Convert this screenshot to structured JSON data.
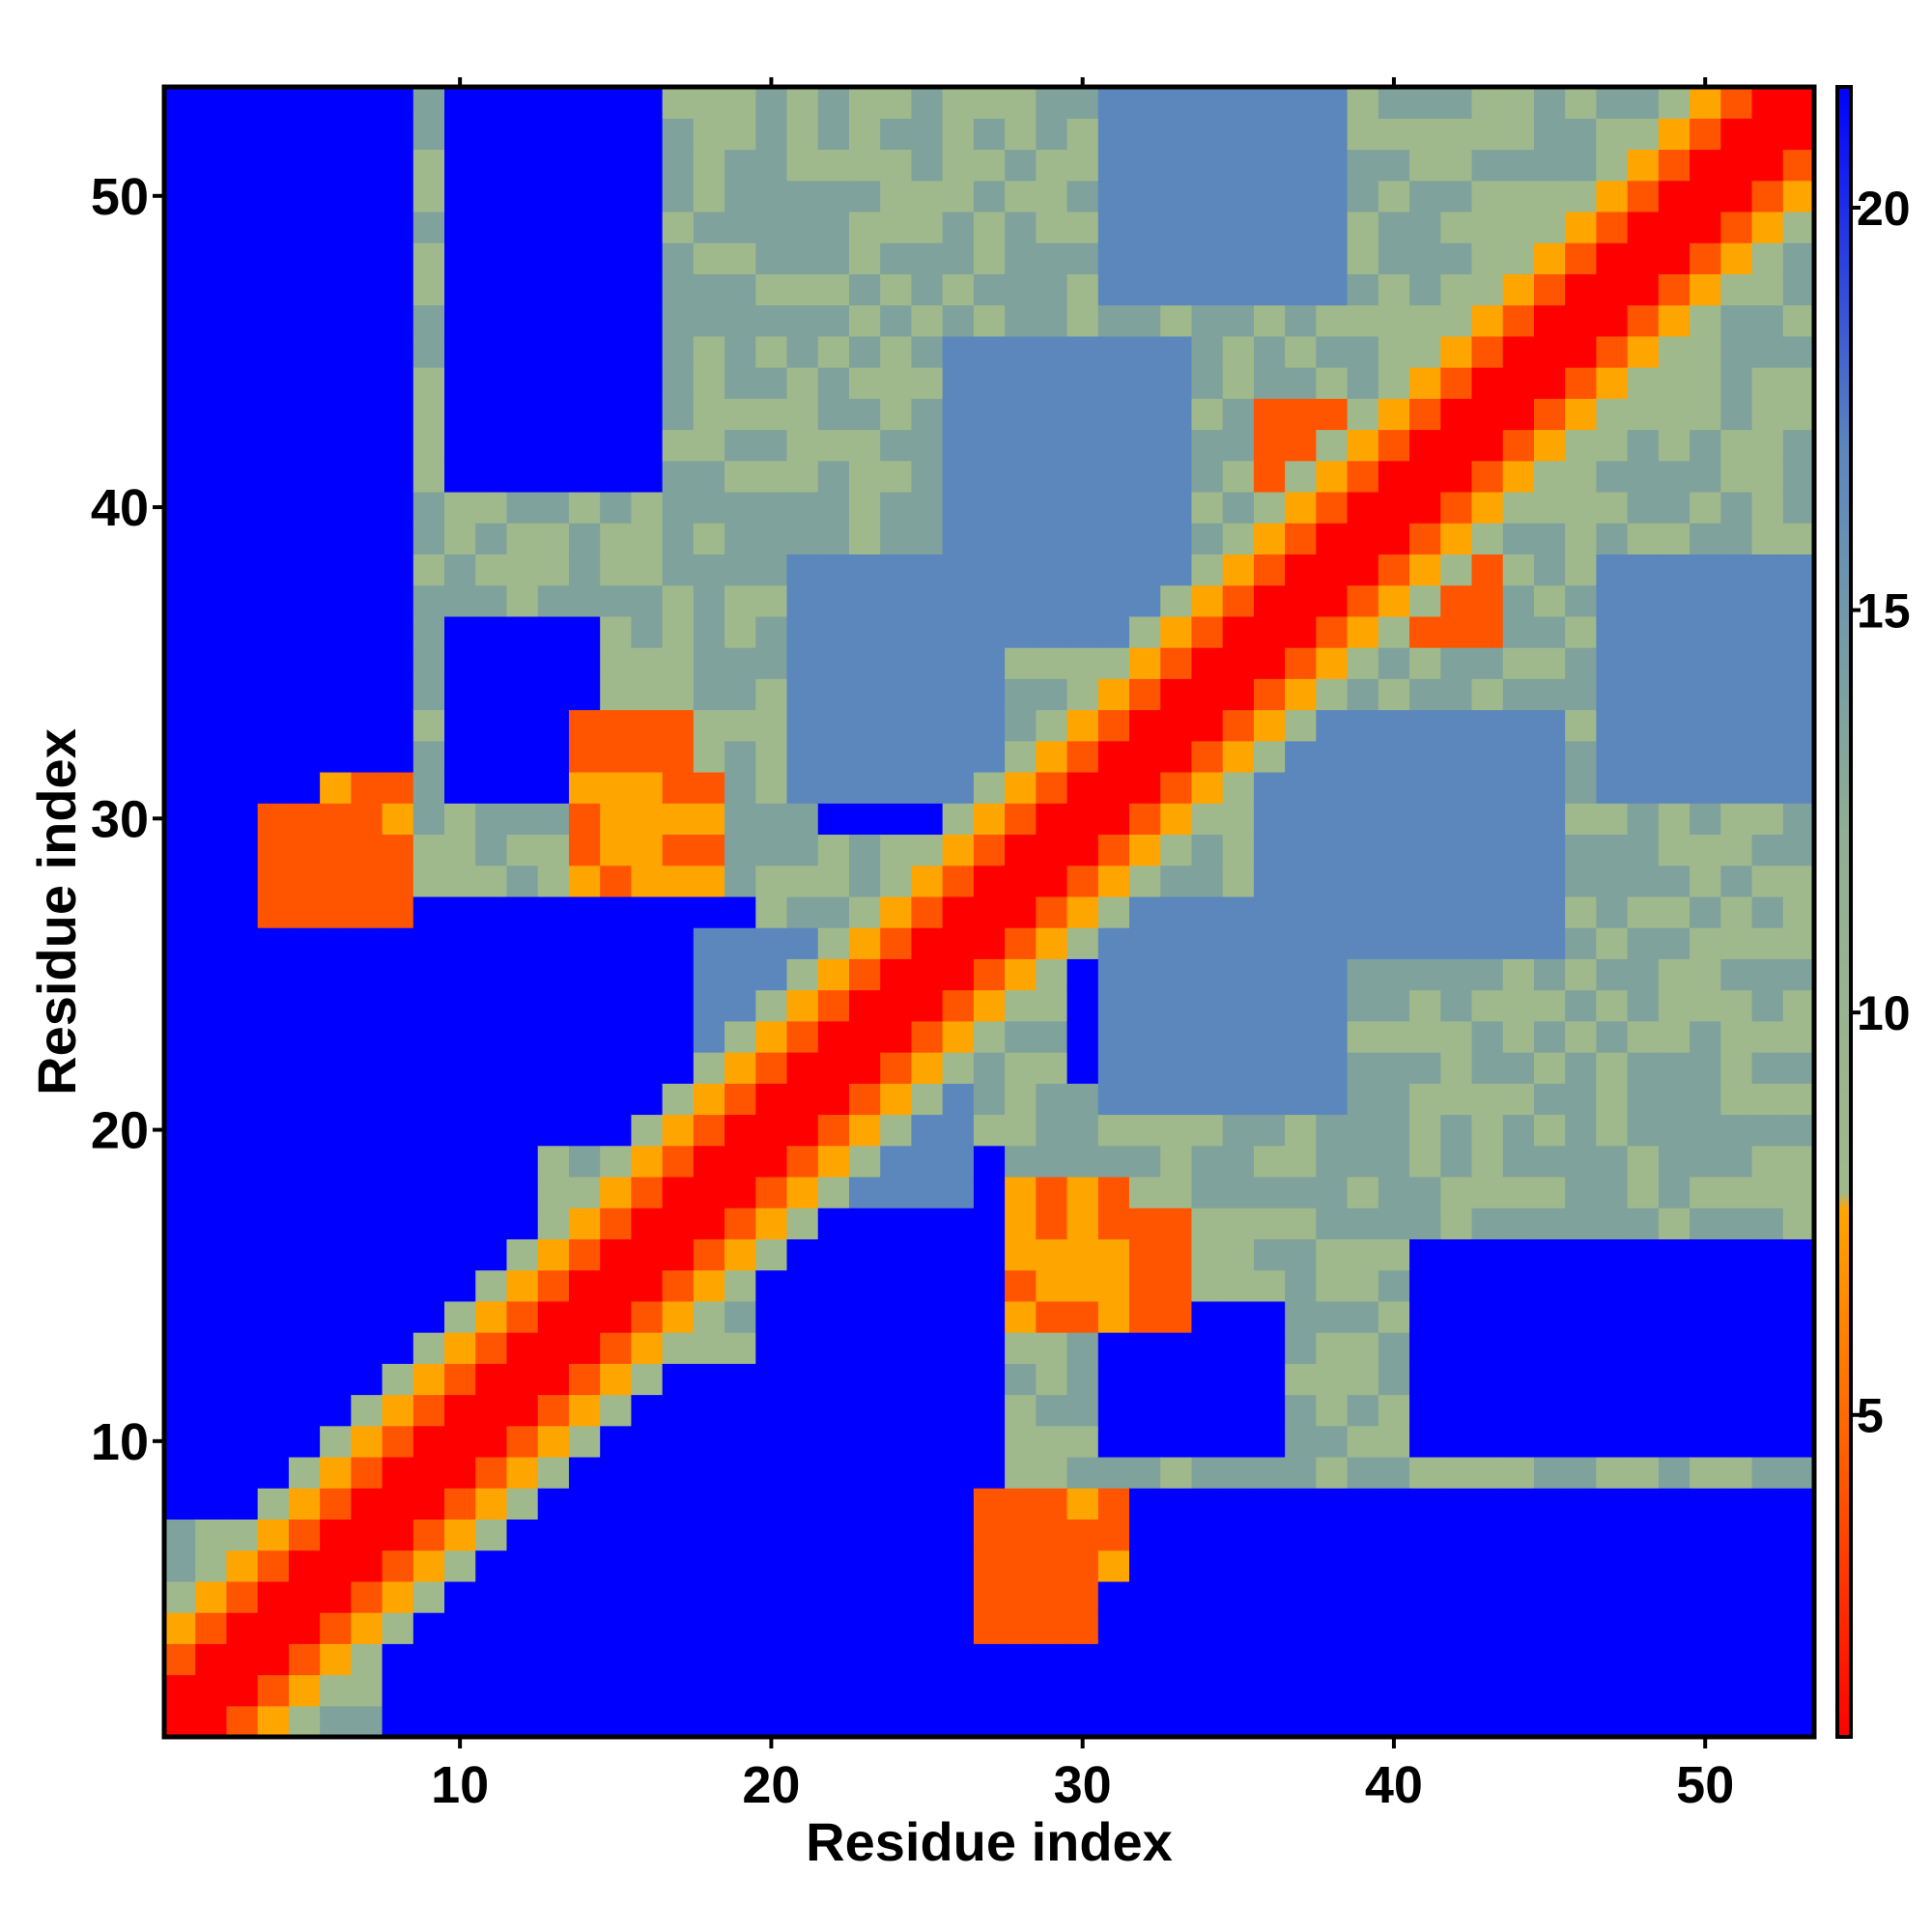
{
  "chart_data": {
    "type": "heatmap",
    "title": "",
    "xlabel": "Residue index",
    "ylabel": "Residue index",
    "n_residues": 53,
    "x_ticks": [
      10,
      20,
      30,
      40,
      50
    ],
    "y_ticks": [
      10,
      20,
      30,
      40,
      50
    ],
    "colorbar": {
      "ticks": [
        5,
        10,
        15,
        20
      ],
      "range": [
        1,
        21.5
      ],
      "colors": {
        "red": "#ff0000",
        "orange_red": "#ff5500",
        "orange": "#ffa500",
        "sage": "#a0b98c",
        "grey_teal": "#7fa29c",
        "steel_blue": "#5b87bd",
        "blue": "#0000ff"
      }
    },
    "value_description": "pairwise residue distance (symmetric distance map)",
    "symmetric": true,
    "diagonal_value": 1,
    "near_diagonal_values": [
      {
        "offset": 1,
        "value": 1
      },
      {
        "offset": 2,
        "value": 3
      },
      {
        "offset": 3,
        "value": 6
      },
      {
        "offset": 4,
        "value": 9
      }
    ],
    "background_value": 11,
    "regions": [
      {
        "i": [
          1,
          8
        ],
        "j": [
          8,
          53
        ],
        "value": 21
      },
      {
        "i": [
          9,
          19
        ],
        "j": [
          9,
          12
        ],
        "value": 21
      },
      {
        "i": [
          9,
          19
        ],
        "j": [
          20,
          27
        ],
        "value": 21
      },
      {
        "i": [
          13,
          21
        ],
        "j": [
          20,
          25
        ],
        "value": 21
      },
      {
        "i": [
          10,
          16
        ],
        "j": [
          41,
          53
        ],
        "value": 21
      },
      {
        "i": [
          10,
          14
        ],
        "j": [
          31,
          36
        ],
        "value": 21
      },
      {
        "i": [
          22,
          26
        ],
        "j": [
          9,
          16
        ],
        "value": 21
      },
      {
        "i": [
          1,
          4
        ],
        "j": [
          33,
          53
        ],
        "value": 21
      },
      {
        "i": [
          32,
          36
        ],
        "j": [
          51,
          53
        ],
        "value": 21
      },
      {
        "i": [
          13,
          20
        ],
        "j": [
          1,
          3
        ],
        "value": 21
      },
      {
        "i": [
          24,
          26
        ],
        "j": [
          4,
          7
        ],
        "value": 21
      },
      {
        "i": [
          30,
          33
        ],
        "j": [
          22,
          25
        ],
        "value": 21
      },
      {
        "i": [
          18,
          26
        ],
        "j": [
          18,
          22
        ],
        "value": 19
      },
      {
        "i": [
          21,
          27
        ],
        "j": [
          31,
          38
        ],
        "value": 19
      },
      {
        "i": [
          36,
          45
        ],
        "j": [
          26,
          33
        ],
        "value": 19
      },
      {
        "i": [
          47,
          53
        ],
        "j": [
          31,
          38
        ],
        "value": 19
      },
      {
        "i": [
          28,
          31
        ],
        "j": [
          6,
          8
        ],
        "value": 5
      },
      {
        "i": [
          27,
          30
        ],
        "j": [
          4,
          6
        ],
        "value": 4
      },
      {
        "i": [
          29,
          33
        ],
        "j": [
          14,
          17
        ],
        "value": 4
      },
      {
        "i": [
          5,
          8
        ],
        "j": [
          27,
          29
        ],
        "value": 4
      },
      {
        "i": [
          14,
          18
        ],
        "j": [
          28,
          31
        ],
        "value": 5
      },
      {
        "i": [
          38,
          43
        ],
        "j": [
          36,
          40
        ],
        "value": 4
      }
    ]
  }
}
